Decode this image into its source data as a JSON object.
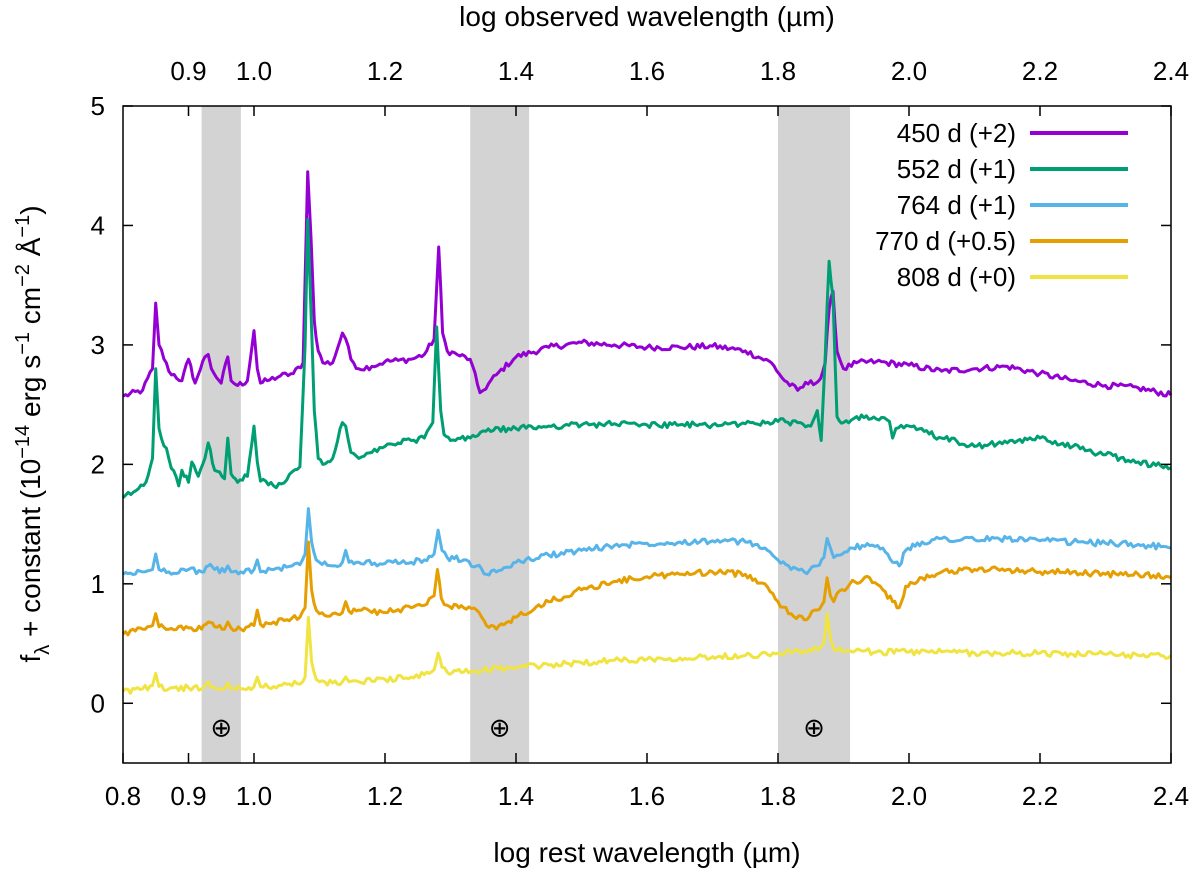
{
  "chart_data": {
    "type": "line",
    "xlabel": "log rest wavelength (µm)",
    "x2label": "log observed wavelength (µm)",
    "ylabel_main": "f",
    "ylabel_sub": "λ",
    "ylabel_rest": " + constant (10",
    "ylabel_exp1": "−14",
    "ylabel_erg": " erg s",
    "ylabel_exp2": "−1",
    "ylabel_cm": " cm",
    "ylabel_exp3": "−2",
    "ylabel_ang": " Å",
    "ylabel_exp4": "−1",
    "ylabel_close": ")",
    "xlim": [
      0.8,
      2.4
    ],
    "ylim": [
      -0.5,
      5
    ],
    "x_ticks": [
      {
        "value": 0.8,
        "label": "0.8"
      },
      {
        "value": 0.9,
        "label": "0.9"
      },
      {
        "value": 1.0,
        "label": "1.0"
      },
      {
        "value": 1.2,
        "label": "1.2"
      },
      {
        "value": 1.4,
        "label": "1.4"
      },
      {
        "value": 1.6,
        "label": "1.6"
      },
      {
        "value": 1.8,
        "label": "1.8"
      },
      {
        "value": 2.0,
        "label": "2.0"
      },
      {
        "value": 2.2,
        "label": "2.2"
      },
      {
        "value": 2.4,
        "label": "2.4"
      }
    ],
    "x2_ticks": [
      {
        "value": 0.9,
        "label": "0.9"
      },
      {
        "value": 1.0,
        "label": "1.0"
      },
      {
        "value": 1.2,
        "label": "1.2"
      },
      {
        "value": 1.4,
        "label": "1.4"
      },
      {
        "value": 1.6,
        "label": "1.6"
      },
      {
        "value": 1.8,
        "label": "1.8"
      },
      {
        "value": 2.0,
        "label": "2.0"
      },
      {
        "value": 2.2,
        "label": "2.2"
      },
      {
        "value": 2.4,
        "label": "2.4"
      }
    ],
    "y_ticks": [
      {
        "value": 0,
        "label": "0"
      },
      {
        "value": 1,
        "label": "1"
      },
      {
        "value": 2,
        "label": "2"
      },
      {
        "value": 3,
        "label": "3"
      },
      {
        "value": 4,
        "label": "4"
      },
      {
        "value": 5,
        "label": "5"
      }
    ],
    "telluric_bands": [
      {
        "x0": 0.92,
        "x1": 0.98,
        "symbol": "⊕"
      },
      {
        "x0": 1.33,
        "x1": 1.42,
        "symbol": "⊕"
      },
      {
        "x0": 1.8,
        "x1": 1.91,
        "symbol": "⊕"
      }
    ],
    "band_color": "#d3d3d3",
    "legend_position": "top-right",
    "series": [
      {
        "name": "450 d (+2)",
        "color": "#9400d3",
        "x": [
          0.8,
          0.83,
          0.845,
          0.85,
          0.855,
          0.87,
          0.89,
          0.9,
          0.91,
          0.915,
          0.925,
          0.93,
          0.935,
          0.95,
          0.96,
          0.965,
          0.975,
          0.99,
          1.0,
          1.005,
          1.01,
          1.02,
          1.04,
          1.06,
          1.075,
          1.082,
          1.087,
          1.092,
          1.098,
          1.105,
          1.12,
          1.135,
          1.14,
          1.148,
          1.16,
          1.18,
          1.2,
          1.22,
          1.24,
          1.26,
          1.275,
          1.282,
          1.288,
          1.295,
          1.31,
          1.33,
          1.345,
          1.35,
          1.37,
          1.4,
          1.45,
          1.5,
          1.55,
          1.6,
          1.65,
          1.7,
          1.75,
          1.79,
          1.81,
          1.83,
          1.85,
          1.858,
          1.865,
          1.872,
          1.878,
          1.884,
          1.89,
          1.9,
          1.92,
          1.95,
          2.0,
          2.05,
          2.1,
          2.15,
          2.2,
          2.25,
          2.3,
          2.35,
          2.4
        ],
        "y": [
          2.57,
          2.62,
          2.8,
          3.35,
          3.0,
          2.78,
          2.7,
          2.88,
          2.68,
          2.75,
          2.9,
          2.92,
          2.8,
          2.68,
          2.9,
          2.7,
          2.66,
          2.7,
          3.12,
          2.8,
          2.68,
          2.7,
          2.74,
          2.76,
          2.85,
          4.45,
          3.9,
          3.2,
          2.95,
          2.85,
          2.85,
          3.1,
          3.05,
          2.88,
          2.8,
          2.82,
          2.86,
          2.87,
          2.88,
          2.92,
          3.05,
          3.82,
          3.1,
          2.95,
          2.92,
          2.88,
          2.6,
          2.62,
          2.75,
          2.9,
          2.98,
          3.02,
          3.0,
          2.98,
          2.98,
          2.99,
          2.95,
          2.85,
          2.7,
          2.62,
          2.7,
          2.68,
          2.72,
          2.85,
          3.3,
          3.45,
          2.95,
          2.8,
          2.85,
          2.86,
          2.83,
          2.78,
          2.8,
          2.82,
          2.76,
          2.7,
          2.66,
          2.64,
          2.58
        ]
      },
      {
        "name": "552 d (+1)",
        "color": "#009e73",
        "x": [
          0.8,
          0.82,
          0.835,
          0.845,
          0.85,
          0.855,
          0.87,
          0.885,
          0.89,
          0.9,
          0.905,
          0.915,
          0.925,
          0.93,
          0.94,
          0.955,
          0.96,
          0.965,
          0.975,
          0.99,
          1.0,
          1.005,
          1.01,
          1.03,
          1.05,
          1.07,
          1.078,
          1.082,
          1.086,
          1.092,
          1.098,
          1.105,
          1.12,
          1.135,
          1.14,
          1.148,
          1.16,
          1.18,
          1.2,
          1.22,
          1.24,
          1.26,
          1.273,
          1.279,
          1.285,
          1.29,
          1.3,
          1.33,
          1.35,
          1.4,
          1.45,
          1.5,
          1.55,
          1.6,
          1.65,
          1.7,
          1.75,
          1.8,
          1.83,
          1.85,
          1.86,
          1.866,
          1.872,
          1.878,
          1.884,
          1.89,
          1.9,
          1.92,
          1.95,
          1.97,
          1.975,
          1.98,
          2.0,
          2.05,
          2.1,
          2.15,
          2.2,
          2.25,
          2.3,
          2.35,
          2.4
        ],
        "y": [
          1.72,
          1.78,
          1.85,
          2.05,
          2.8,
          2.3,
          2.05,
          1.82,
          1.95,
          1.85,
          2.02,
          1.9,
          2.05,
          2.18,
          1.95,
          1.88,
          2.22,
          1.92,
          1.85,
          1.9,
          2.32,
          2.02,
          1.86,
          1.82,
          1.87,
          1.98,
          3.0,
          4.05,
          3.45,
          2.45,
          2.05,
          2.0,
          2.05,
          2.35,
          2.32,
          2.1,
          2.05,
          2.1,
          2.15,
          2.18,
          2.2,
          2.22,
          2.35,
          3.15,
          2.45,
          2.25,
          2.2,
          2.22,
          2.28,
          2.3,
          2.32,
          2.33,
          2.34,
          2.33,
          2.33,
          2.33,
          2.34,
          2.36,
          2.35,
          2.32,
          2.45,
          2.2,
          2.9,
          3.7,
          3.4,
          2.4,
          2.35,
          2.4,
          2.38,
          2.36,
          2.22,
          2.3,
          2.32,
          2.22,
          2.15,
          2.18,
          2.22,
          2.15,
          2.08,
          2.02,
          1.97
        ]
      },
      {
        "name": "764 d (+1)",
        "color": "#56b4e9",
        "x": [
          0.8,
          0.83,
          0.845,
          0.85,
          0.855,
          0.87,
          0.9,
          0.92,
          0.93,
          0.94,
          0.955,
          0.96,
          0.965,
          0.98,
          1.0,
          1.005,
          1.01,
          1.03,
          1.05,
          1.07,
          1.078,
          1.083,
          1.088,
          1.095,
          1.1,
          1.12,
          1.135,
          1.14,
          1.145,
          1.16,
          1.2,
          1.24,
          1.26,
          1.275,
          1.281,
          1.287,
          1.295,
          1.32,
          1.34,
          1.355,
          1.37,
          1.4,
          1.45,
          1.5,
          1.55,
          1.6,
          1.65,
          1.7,
          1.75,
          1.78,
          1.8,
          1.82,
          1.84,
          1.86,
          1.87,
          1.875,
          1.88,
          1.885,
          1.89,
          1.91,
          1.94,
          1.96,
          1.975,
          1.985,
          1.995,
          2.02,
          2.05,
          2.1,
          2.15,
          2.2,
          2.25,
          2.3,
          2.35,
          2.4
        ],
        "y": [
          1.08,
          1.1,
          1.12,
          1.25,
          1.12,
          1.1,
          1.12,
          1.1,
          1.15,
          1.12,
          1.1,
          1.15,
          1.1,
          1.1,
          1.12,
          1.2,
          1.1,
          1.12,
          1.14,
          1.16,
          1.25,
          1.63,
          1.35,
          1.2,
          1.18,
          1.15,
          1.18,
          1.28,
          1.18,
          1.18,
          1.17,
          1.18,
          1.2,
          1.25,
          1.45,
          1.28,
          1.22,
          1.2,
          1.15,
          1.08,
          1.1,
          1.18,
          1.24,
          1.28,
          1.32,
          1.34,
          1.35,
          1.36,
          1.35,
          1.3,
          1.2,
          1.12,
          1.1,
          1.15,
          1.22,
          1.38,
          1.3,
          1.22,
          1.24,
          1.3,
          1.32,
          1.3,
          1.18,
          1.15,
          1.28,
          1.35,
          1.38,
          1.37,
          1.38,
          1.36,
          1.35,
          1.34,
          1.33,
          1.3
        ]
      },
      {
        "name": "770 d (+0.5)",
        "color": "#e69f00",
        "x": [
          0.8,
          0.83,
          0.845,
          0.85,
          0.855,
          0.87,
          0.9,
          0.92,
          0.93,
          0.94,
          0.955,
          0.96,
          0.965,
          0.98,
          1.0,
          1.005,
          1.01,
          1.03,
          1.05,
          1.07,
          1.078,
          1.083,
          1.088,
          1.095,
          1.1,
          1.12,
          1.135,
          1.14,
          1.145,
          1.16,
          1.2,
          1.24,
          1.26,
          1.275,
          1.28,
          1.286,
          1.295,
          1.32,
          1.34,
          1.355,
          1.37,
          1.4,
          1.45,
          1.5,
          1.55,
          1.6,
          1.65,
          1.7,
          1.75,
          1.78,
          1.8,
          1.82,
          1.84,
          1.86,
          1.87,
          1.875,
          1.88,
          1.885,
          1.89,
          1.91,
          1.94,
          1.96,
          1.975,
          1.985,
          1.995,
          2.02,
          2.05,
          2.1,
          2.15,
          2.2,
          2.25,
          2.3,
          2.35,
          2.4
        ],
        "y": [
          0.58,
          0.62,
          0.65,
          0.75,
          0.64,
          0.62,
          0.63,
          0.62,
          0.68,
          0.64,
          0.62,
          0.68,
          0.63,
          0.62,
          0.65,
          0.78,
          0.66,
          0.68,
          0.7,
          0.72,
          0.8,
          1.35,
          0.95,
          0.78,
          0.75,
          0.75,
          0.76,
          0.85,
          0.77,
          0.78,
          0.76,
          0.8,
          0.82,
          0.9,
          1.12,
          0.88,
          0.82,
          0.8,
          0.78,
          0.65,
          0.62,
          0.72,
          0.85,
          0.95,
          1.02,
          1.06,
          1.08,
          1.1,
          1.08,
          1.0,
          0.85,
          0.75,
          0.7,
          0.78,
          0.85,
          1.05,
          0.9,
          0.85,
          0.92,
          1.0,
          1.05,
          0.95,
          0.85,
          0.8,
          0.98,
          1.05,
          1.1,
          1.12,
          1.12,
          1.1,
          1.1,
          1.08,
          1.08,
          1.05
        ]
      },
      {
        "name": "808 d (+0)",
        "color": "#f0e442",
        "x": [
          0.8,
          0.83,
          0.845,
          0.85,
          0.855,
          0.87,
          0.9,
          0.92,
          0.93,
          0.94,
          0.955,
          0.96,
          0.965,
          0.98,
          1.0,
          1.005,
          1.01,
          1.03,
          1.05,
          1.07,
          1.078,
          1.083,
          1.088,
          1.095,
          1.1,
          1.12,
          1.135,
          1.14,
          1.145,
          1.16,
          1.2,
          1.24,
          1.26,
          1.275,
          1.281,
          1.287,
          1.295,
          1.32,
          1.35,
          1.4,
          1.45,
          1.5,
          1.55,
          1.6,
          1.65,
          1.7,
          1.75,
          1.8,
          1.84,
          1.86,
          1.87,
          1.875,
          1.88,
          1.885,
          1.89,
          1.91,
          1.95,
          2.0,
          2.05,
          2.1,
          2.15,
          2.2,
          2.25,
          2.3,
          2.35,
          2.4
        ],
        "y": [
          0.1,
          0.12,
          0.15,
          0.25,
          0.14,
          0.12,
          0.13,
          0.12,
          0.18,
          0.13,
          0.12,
          0.17,
          0.12,
          0.12,
          0.14,
          0.22,
          0.14,
          0.14,
          0.16,
          0.16,
          0.22,
          0.72,
          0.35,
          0.2,
          0.18,
          0.17,
          0.18,
          0.22,
          0.18,
          0.18,
          0.2,
          0.22,
          0.24,
          0.28,
          0.42,
          0.3,
          0.26,
          0.26,
          0.28,
          0.3,
          0.32,
          0.34,
          0.36,
          0.37,
          0.38,
          0.39,
          0.4,
          0.42,
          0.44,
          0.45,
          0.5,
          0.75,
          0.55,
          0.45,
          0.44,
          0.44,
          0.43,
          0.43,
          0.43,
          0.42,
          0.42,
          0.42,
          0.41,
          0.41,
          0.4,
          0.4
        ]
      }
    ]
  }
}
